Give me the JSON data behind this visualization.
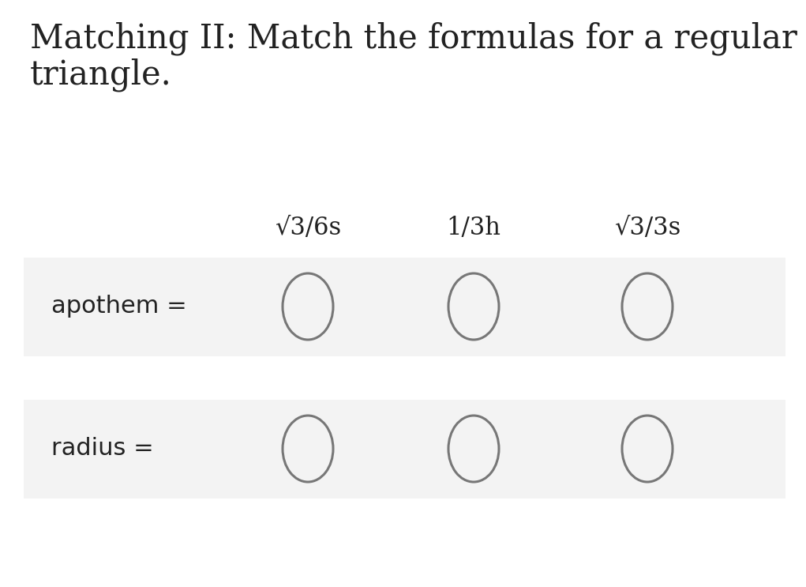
{
  "title_line1": "Matching II: Match the formulas for a regular",
  "title_line2": "triangle.",
  "bg_color": "#ffffff",
  "row_bg_color": "#f3f3f3",
  "text_color": "#222222",
  "circle_edge_color": "#777777",
  "header_labels": [
    "√3/6s",
    "1/3h",
    "√3/3s"
  ],
  "row_labels": [
    "apothem =",
    "radius ="
  ],
  "title_fontsize": 30,
  "header_fontsize": 22,
  "label_fontsize": 22,
  "circle_linewidth": 2.2
}
